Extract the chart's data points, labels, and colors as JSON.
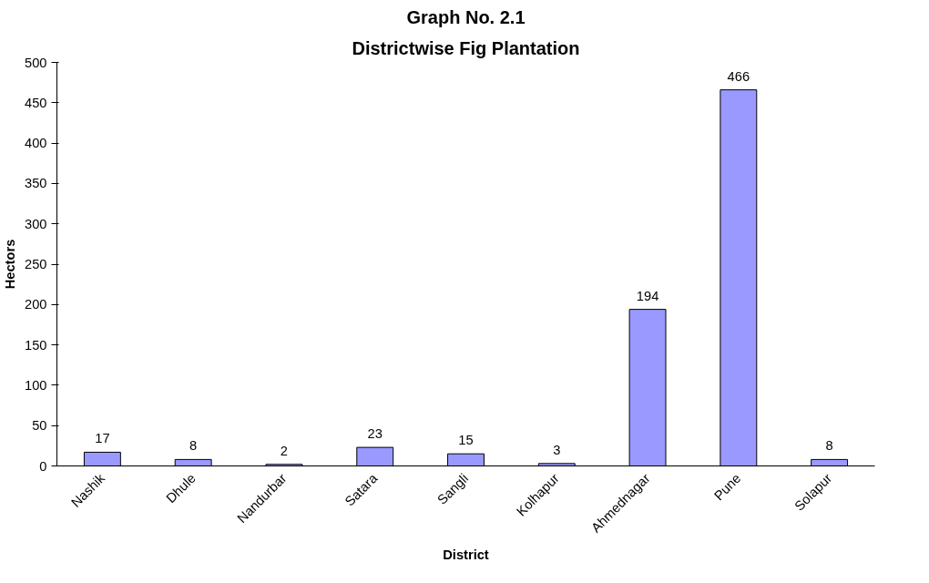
{
  "chart_data": {
    "type": "bar",
    "title": "Graph No. 2.1",
    "subtitle": "Districtwise Fig Plantation",
    "xlabel": "District",
    "ylabel": "Hectors",
    "categories": [
      "Nashik",
      "Dhule",
      "Nandurbar",
      "Satara",
      "Sangli",
      "Kolhapur",
      "Ahmednagar",
      "Pune",
      "Solapur"
    ],
    "values": [
      17,
      8,
      2,
      23,
      15,
      3,
      194,
      466,
      8
    ],
    "color": "#9999ff",
    "ylim": [
      0,
      500
    ],
    "yticks": [
      0,
      50,
      100,
      150,
      200,
      250,
      300,
      350,
      400,
      450,
      500
    ],
    "grid": false,
    "data_labels": true
  }
}
